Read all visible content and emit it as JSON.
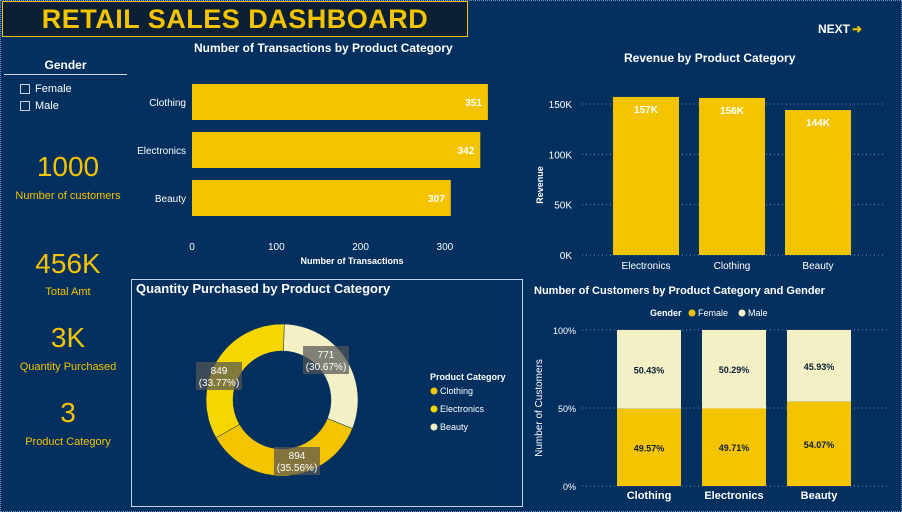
{
  "header": {
    "title": "RETAIL SALES DASHBOARD",
    "next_label": "NEXT"
  },
  "slicer": {
    "title": "Gender",
    "options": [
      {
        "label": "Female",
        "checked": false
      },
      {
        "label": "Male",
        "checked": false
      }
    ]
  },
  "kpis": [
    {
      "value": "1000",
      "label": "Number of customers"
    },
    {
      "value": "456K",
      "label": "Total Amt"
    },
    {
      "value": "3K",
      "label": "Quantity Purchased"
    },
    {
      "value": "3",
      "label": "Product Category"
    }
  ],
  "colors": {
    "accent": "#f5c400",
    "background": "#03305f",
    "male": "#f2f0c4",
    "title_bg": "#0b1f35"
  },
  "chart_data": [
    {
      "id": "transactions",
      "type": "bar",
      "orientation": "horizontal",
      "title": "Number of Transactions by Product Category",
      "xlabel": "Number of Transactions",
      "ylabel": "",
      "categories": [
        "Clothing",
        "Electronics",
        "Beauty"
      ],
      "values": [
        351,
        342,
        307
      ],
      "data_labels": [
        "351",
        "342",
        "307"
      ],
      "xticks": [
        "0",
        "100",
        "200",
        "300"
      ],
      "xlim": [
        0,
        350
      ],
      "grid": false
    },
    {
      "id": "revenue",
      "type": "bar",
      "title": "Revenue by Product Category",
      "xlabel": "",
      "ylabel": "Revenue",
      "categories": [
        "Electronics",
        "Clothing",
        "Beauty"
      ],
      "values": [
        157000,
        156000,
        144000
      ],
      "data_labels": [
        "157K",
        "156K",
        "144K"
      ],
      "yticks": [
        "0K",
        "50K",
        "100K",
        "150K"
      ],
      "ylim": [
        0,
        150000
      ],
      "grid": true
    },
    {
      "id": "quantity",
      "type": "pie",
      "donut": true,
      "title": "Quantity Purchased by Product Category",
      "legend_title": "Product Category",
      "legend_position": "right",
      "slices": [
        {
          "label": "Clothing",
          "value": 894,
          "pct_label": "(35.56%)",
          "color": "#f5c400"
        },
        {
          "label": "Electronics",
          "value": 849,
          "pct_label": "(33.77%)",
          "color": "#f7d600"
        },
        {
          "label": "Beauty",
          "value": 771,
          "pct_label": "(30.67%)",
          "color": "#f2f0c4"
        }
      ]
    },
    {
      "id": "customers",
      "type": "bar",
      "stacked": "percent",
      "title": "Number of Customers by Product Category and Gender",
      "legend_title": "Gender",
      "legend_position": "top",
      "xlabel": "",
      "ylabel": "Number of Customers",
      "categories": [
        "Clothing",
        "Electronics",
        "Beauty"
      ],
      "series": [
        {
          "name": "Female",
          "values": [
            49.57,
            49.71,
            54.07
          ],
          "labels": [
            "49.57%",
            "49.71%",
            "54.07%"
          ],
          "color": "#f5c400"
        },
        {
          "name": "Male",
          "values": [
            50.43,
            50.29,
            45.93
          ],
          "labels": [
            "50.43%",
            "50.29%",
            "45.93%"
          ],
          "color": "#f2f0c4"
        }
      ],
      "yticks": [
        "0%",
        "50%",
        "100%"
      ],
      "ylim": [
        0,
        100
      ],
      "grid": true
    }
  ]
}
